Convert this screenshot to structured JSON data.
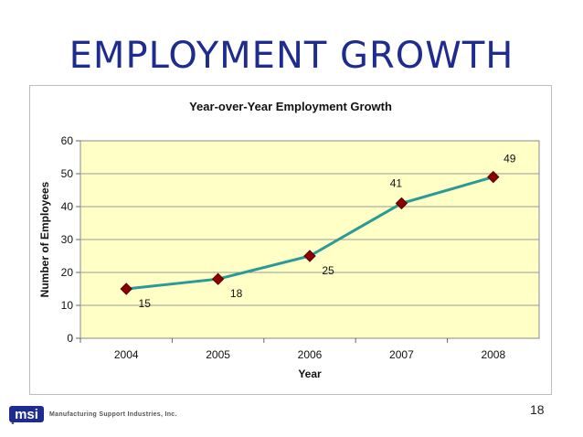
{
  "slide": {
    "title": "EMPLOYMENT GROWTH",
    "company": "Manufacturing Support Industries, Inc.",
    "logo_text": "msi",
    "page_number": "18"
  },
  "colors": {
    "title": "#1f2c8f",
    "plot_bg": "#ffffc6",
    "line": "#2a9a96",
    "marker": "#8b0000"
  },
  "chart_data": {
    "type": "line",
    "title": "Year-over-Year Employment Growth",
    "xlabel": "Year",
    "ylabel": "Number of Employees",
    "categories": [
      "2004",
      "2005",
      "2006",
      "2007",
      "2008"
    ],
    "values": [
      15,
      18,
      25,
      41,
      49
    ],
    "ylim": [
      0,
      60
    ],
    "yticks": [
      0,
      10,
      20,
      30,
      40,
      50,
      60
    ],
    "grid": true,
    "legend": "none",
    "marker": "diamond"
  }
}
